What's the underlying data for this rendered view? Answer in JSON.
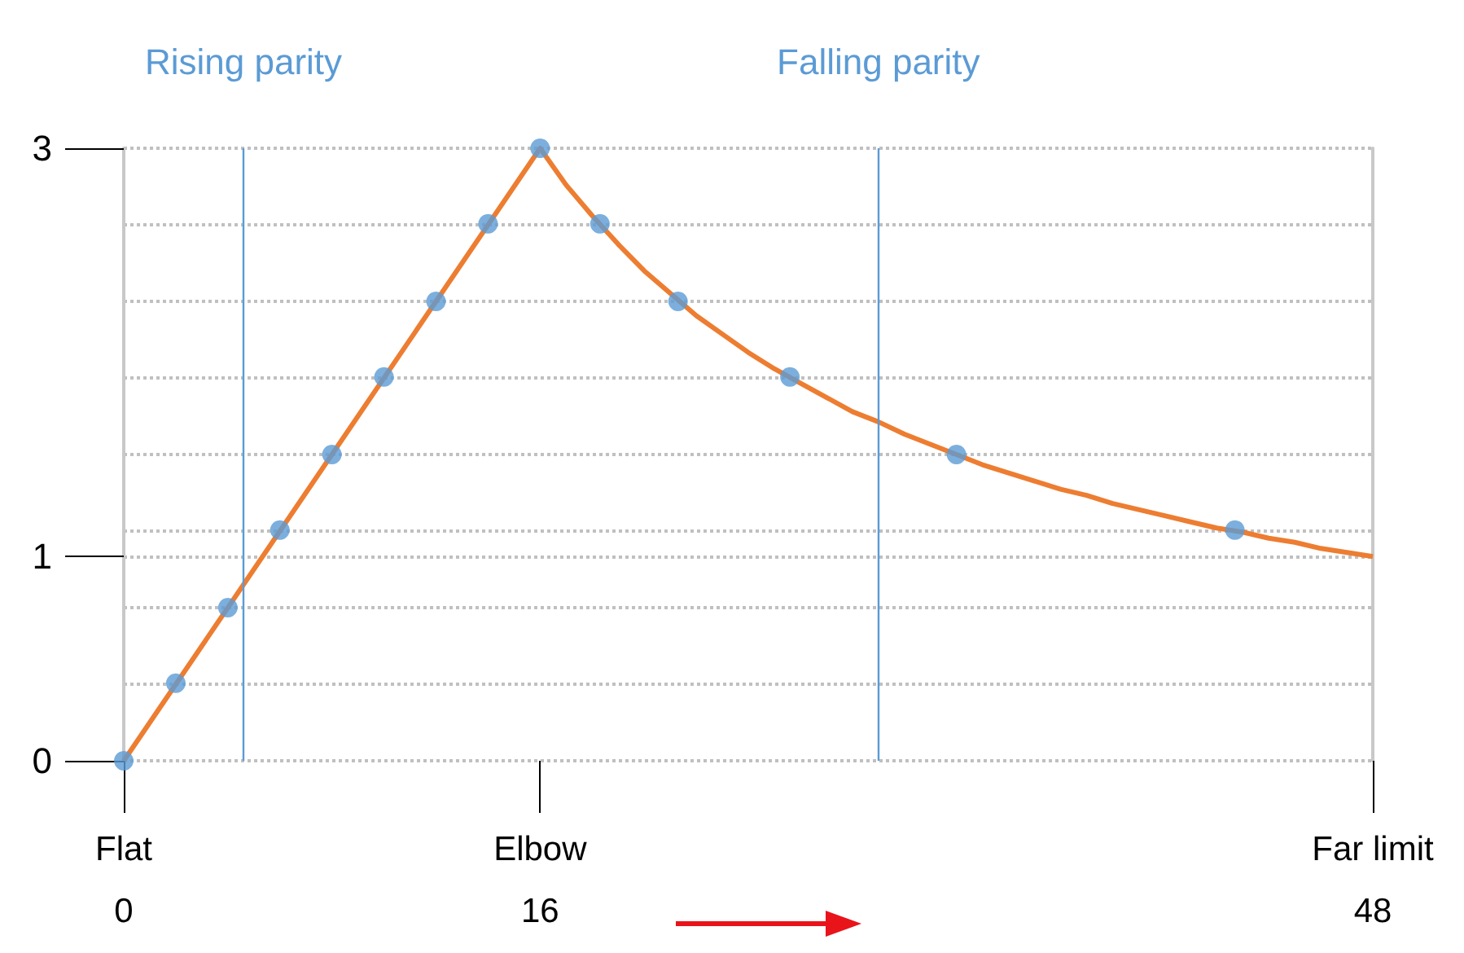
{
  "chart_data": {
    "type": "line",
    "series": [
      {
        "color": "#ed7d31",
        "marker": "none",
        "x": [
          0,
          16,
          17,
          18,
          19,
          20,
          21,
          22,
          23,
          24,
          25,
          26,
          27,
          28,
          29,
          30,
          31,
          32,
          33,
          34,
          35,
          36,
          37,
          38,
          39,
          40,
          41,
          42,
          43,
          44,
          45,
          46,
          47,
          48
        ],
        "values": [
          0,
          3,
          2.82,
          2.67,
          2.53,
          2.4,
          2.29,
          2.18,
          2.09,
          2,
          1.92,
          1.85,
          1.78,
          1.71,
          1.66,
          1.6,
          1.55,
          1.5,
          1.45,
          1.41,
          1.37,
          1.33,
          1.3,
          1.26,
          1.23,
          1.2,
          1.17,
          1.14,
          1.12,
          1.09,
          1.07,
          1.04,
          1.02,
          1
        ]
      },
      {
        "type": "scatter",
        "color": "#5b9bd5",
        "marker": "circle",
        "x": [
          0,
          2,
          4,
          6,
          8,
          10,
          12,
          14,
          16,
          18.3,
          21.3,
          25.6,
          32,
          42.7
        ],
        "values": [
          0,
          0.38,
          0.75,
          1.13,
          1.5,
          1.88,
          2.25,
          2.63,
          3,
          2.63,
          2.25,
          1.88,
          1.5,
          1.13
        ]
      }
    ],
    "xlim": [
      0,
      48
    ],
    "xticks": [
      0,
      16,
      48
    ],
    "annotations": [
      {
        "text": "Flat",
        "x": 0
      },
      {
        "text": "Elbow",
        "x": 16
      },
      {
        "text": "Far limit",
        "x": 48
      }
    ],
    "ylim": [
      0,
      3
    ],
    "yticks": [
      0,
      {
        "value": 0.375,
        "label": null
      },
      {
        "value": 0.75,
        "label": null
      },
      1,
      {
        "value": 1.125,
        "label": null
      },
      {
        "value": 1.5,
        "label": null
      },
      {
        "value": 1.875,
        "label": null
      },
      {
        "value": 2.25,
        "label": null
      },
      {
        "value": 2.625,
        "label": null
      },
      3
    ],
    "grid": "y",
    "ref_lines": [
      {
        "axis": "x",
        "value": 4.6,
        "label": "Rising parity",
        "color": "#5b9bd5"
      },
      {
        "axis": "x",
        "value": 29,
        "label": "Falling parity",
        "color": "#5b9bd5"
      }
    ]
  }
}
